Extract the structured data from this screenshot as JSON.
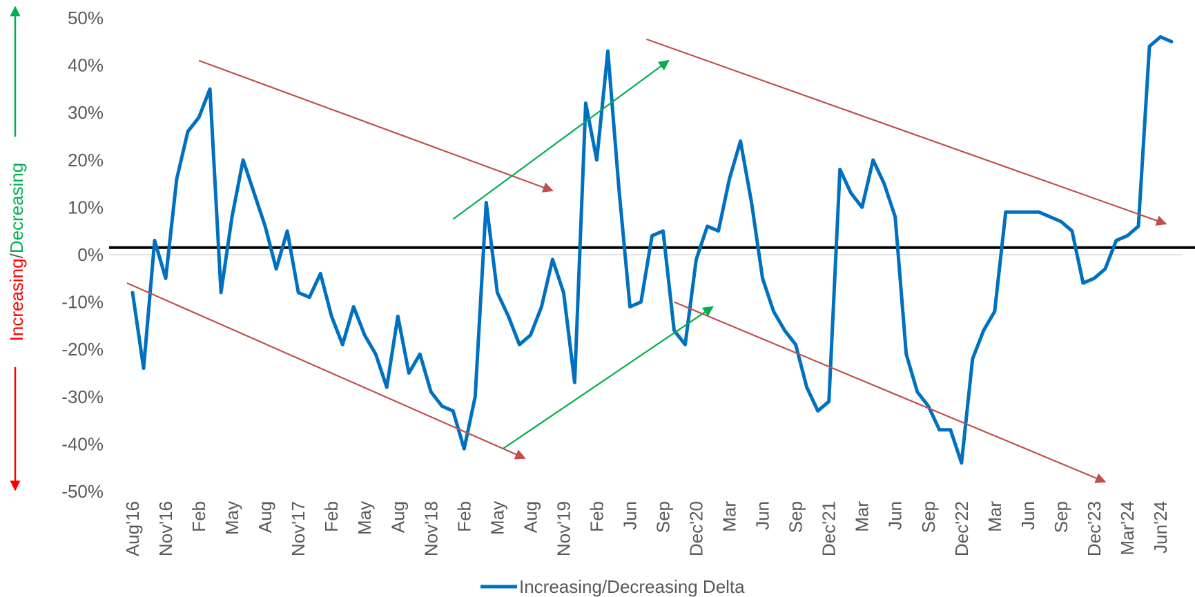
{
  "chart_data": {
    "type": "line",
    "title": "",
    "xlabel": "",
    "ylabel": "",
    "ylabel_parts": {
      "part_red": "Increasing",
      "separator": "/",
      "part_green": "Decreasing"
    },
    "ylim": [
      -50,
      50
    ],
    "yticks": [
      "-50%",
      "-40%",
      "-30%",
      "-20%",
      "-10%",
      "0%",
      "10%",
      "20%",
      "30%",
      "40%",
      "50%"
    ],
    "reference_line_value": 1.5,
    "x_tick_labels": [
      {
        "index": 0,
        "label": "Aug'16"
      },
      {
        "index": 3,
        "label": "Nov'16"
      },
      {
        "index": 6,
        "label": "Feb"
      },
      {
        "index": 9,
        "label": "May"
      },
      {
        "index": 12,
        "label": "Aug"
      },
      {
        "index": 15,
        "label": "Nov'17"
      },
      {
        "index": 18,
        "label": "Feb"
      },
      {
        "index": 21,
        "label": "May"
      },
      {
        "index": 24,
        "label": "Aug"
      },
      {
        "index": 27,
        "label": "Nov'18"
      },
      {
        "index": 30,
        "label": "Feb"
      },
      {
        "index": 33,
        "label": "May"
      },
      {
        "index": 36,
        "label": "Aug"
      },
      {
        "index": 39,
        "label": "Nov'19"
      },
      {
        "index": 42,
        "label": "Feb"
      },
      {
        "index": 45,
        "label": "Jun"
      },
      {
        "index": 48,
        "label": "Sep"
      },
      {
        "index": 51,
        "label": "Dec'20"
      },
      {
        "index": 54,
        "label": "Mar"
      },
      {
        "index": 57,
        "label": "Jun"
      },
      {
        "index": 60,
        "label": "Sep"
      },
      {
        "index": 63,
        "label": "Dec'21"
      },
      {
        "index": 66,
        "label": "Mar"
      },
      {
        "index": 69,
        "label": "Jun"
      },
      {
        "index": 72,
        "label": "Sep"
      },
      {
        "index": 75,
        "label": "Dec'22"
      },
      {
        "index": 78,
        "label": "Mar"
      },
      {
        "index": 81,
        "label": "Jun"
      },
      {
        "index": 84,
        "label": "Sep"
      },
      {
        "index": 87,
        "label": "Dec'23"
      },
      {
        "index": 90,
        "label": "Mar'24"
      },
      {
        "index": 93,
        "label": "Jun'24"
      }
    ],
    "series": [
      {
        "name": "Increasing/Decreasing Delta",
        "color": "#0070C0",
        "values": [
          -8,
          -24,
          3,
          -5,
          16,
          26,
          29,
          35,
          -8,
          8,
          20,
          13,
          6,
          -3,
          5,
          -8,
          -9,
          -4,
          -13,
          -19,
          -11,
          -17,
          -21,
          -28,
          -13,
          -25,
          -21,
          -29,
          -32,
          -33,
          -41,
          -30,
          11,
          -8,
          -13,
          -19,
          -17,
          -11,
          -1,
          -8,
          -27,
          32,
          20,
          43,
          14,
          -11,
          -10,
          4,
          5,
          -16,
          -19,
          -1,
          6,
          5,
          16,
          24,
          11,
          -5,
          -12,
          -16,
          -19,
          -28,
          -33,
          -31,
          18,
          13,
          10,
          20,
          15,
          8,
          -21,
          -29,
          -32,
          -37,
          -37,
          -44,
          -22,
          -16,
          -12,
          9,
          9,
          9,
          9,
          8,
          7,
          5,
          -6,
          -5,
          -3,
          3,
          4,
          6,
          44,
          46,
          45
        ]
      }
    ],
    "trend_arrows": [
      {
        "color": "#C0504D",
        "from": [
          6,
          41
        ],
        "to": [
          38,
          13.5
        ]
      },
      {
        "color": "#C0504D",
        "from": [
          -0.5,
          -6
        ],
        "to": [
          35.5,
          -43
        ]
      },
      {
        "color": "#00B050",
        "from": [
          29,
          7.5
        ],
        "to": [
          48.5,
          41
        ]
      },
      {
        "color": "#00B050",
        "from": [
          33.5,
          -41
        ],
        "to": [
          52.5,
          -11
        ]
      },
      {
        "color": "#C0504D",
        "from": [
          46.5,
          45.5
        ],
        "to": [
          93.5,
          6.5
        ]
      },
      {
        "color": "#C0504D",
        "from": [
          49,
          -10
        ],
        "to": [
          88,
          -48
        ]
      }
    ],
    "legend": {
      "position": "bottom",
      "label": "Increasing/Decreasing Delta"
    },
    "colors": {
      "axis_red": "#FF0000",
      "axis_green": "#00B050",
      "zero_line": "#D9D9D9",
      "reference_line": "#000000"
    }
  }
}
